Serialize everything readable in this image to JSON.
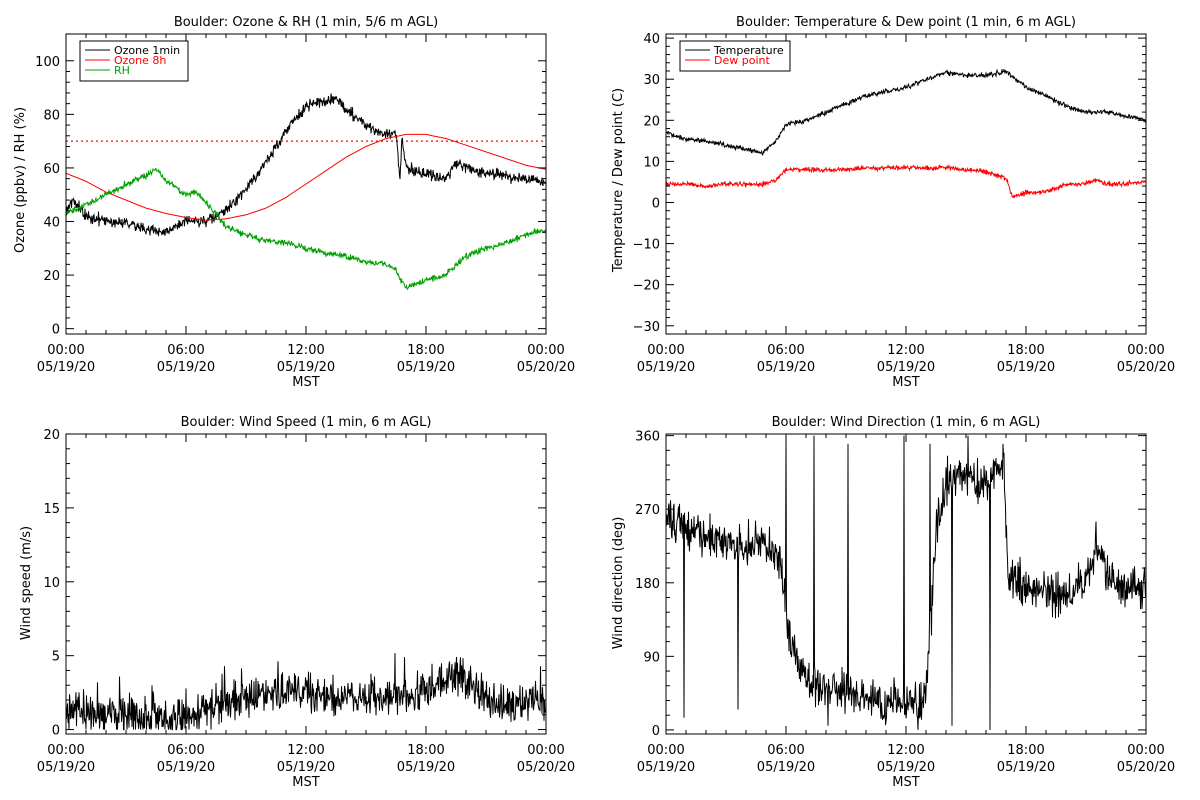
{
  "chart_data": [
    {
      "type": "line",
      "title": "Boulder: Ozone & RH (1 min, 5/6 m AGL)",
      "ylabel": "Ozone (ppbv) / RH (%)",
      "xlabel": "",
      "xlim": [
        0,
        24
      ],
      "ylim": [
        -2,
        110
      ],
      "y_ticks": [
        "0",
        "20",
        "40",
        "60",
        "80",
        "100"
      ],
      "x_tick_times": [
        "00:00",
        "06:00",
        "12:00",
        "18:00",
        "00:00"
      ],
      "x_tick_dates": [
        "05/19/20",
        "05/19/20",
        "05/19/20",
        "05/19/20",
        "05/20/20"
      ],
      "legend": "top-left",
      "reference_line": {
        "y": 70,
        "color": "#ff0000",
        "style": "dotted"
      },
      "series": [
        {
          "name": "Ozone 1min",
          "color": "#000000",
          "noise": 1.5,
          "x": [
            0,
            0.3,
            1,
            2,
            3,
            4,
            5,
            5.5,
            6,
            7,
            8,
            9,
            10,
            11,
            12,
            13,
            13.5,
            14,
            15,
            16,
            16.5,
            16.7,
            16.8,
            17,
            18,
            19,
            19.5,
            20,
            21,
            22,
            23,
            24
          ],
          "values": [
            44,
            48,
            42,
            40,
            40,
            37,
            36,
            38,
            40,
            40,
            44,
            52,
            62,
            74,
            83,
            85,
            86,
            82,
            76,
            72,
            74,
            55,
            72,
            60,
            58,
            56,
            62,
            60,
            58,
            57,
            56,
            54
          ]
        },
        {
          "name": "Ozone 8h",
          "color": "#ff0000",
          "noise": 0,
          "x": [
            0,
            1,
            2,
            3,
            4,
            5,
            6,
            7,
            8,
            9,
            10,
            11,
            12,
            13,
            14,
            15,
            16,
            17,
            18,
            19,
            20,
            21,
            22,
            23,
            24
          ],
          "values": [
            58,
            55,
            51,
            48,
            45,
            43,
            41.5,
            40.5,
            41,
            42.5,
            45,
            49,
            54,
            59,
            64,
            68,
            71,
            72.5,
            72.5,
            71,
            68.5,
            66,
            63.5,
            61,
            59.5
          ]
        },
        {
          "name": "RH",
          "color": "#00a000",
          "noise": 0.8,
          "x": [
            0,
            1,
            2,
            3,
            4,
            4.5,
            5,
            5.3,
            6,
            6.5,
            7,
            7.5,
            8,
            9,
            10,
            11,
            12,
            13,
            14,
            15,
            16,
            16.5,
            17,
            18,
            19,
            19.5,
            20,
            21,
            22,
            23,
            24
          ],
          "values": [
            43,
            46,
            50,
            54,
            57,
            60,
            55,
            54,
            50,
            51,
            47,
            43,
            38,
            35,
            33,
            32,
            30,
            28,
            27,
            25,
            24,
            22,
            15,
            18,
            20,
            24,
            27,
            30,
            32,
            35,
            37
          ]
        }
      ]
    },
    {
      "type": "line",
      "title": "Boulder: Temperature & Dew point (1 min, 6 m AGL)",
      "ylabel": "Temperature / Dew point (C)",
      "xlabel": "",
      "xlim": [
        0,
        24
      ],
      "ylim": [
        -32,
        41
      ],
      "y_ticks": [
        "−30",
        "−20",
        "−10",
        "0",
        "10",
        "20",
        "30",
        "40"
      ],
      "y_tick_values": [
        -30,
        -20,
        -10,
        0,
        10,
        20,
        30,
        40
      ],
      "x_tick_times": [
        "00:00",
        "06:00",
        "12:00",
        "18:00",
        "00:00"
      ],
      "x_tick_dates": [
        "05/19/20",
        "05/19/20",
        "05/19/20",
        "05/19/20",
        "05/20/20"
      ],
      "legend": "top-left",
      "series": [
        {
          "name": "Temperature",
          "color": "#000000",
          "noise": 0.4,
          "x": [
            0,
            1,
            2,
            3,
            4,
            4.8,
            5.5,
            6,
            7,
            8,
            9,
            10,
            11,
            12,
            13,
            14,
            15,
            16,
            17,
            17.5,
            18,
            19,
            20,
            21,
            22,
            23,
            24
          ],
          "values": [
            17,
            15.5,
            15,
            14,
            13,
            12,
            15,
            19,
            20,
            22,
            24,
            26,
            27,
            28,
            30,
            31.5,
            31,
            31,
            32,
            30,
            28,
            26,
            23.5,
            22,
            22,
            21,
            20
          ]
        },
        {
          "name": "Dew point",
          "color": "#ff0000",
          "noise": 0.4,
          "x": [
            0,
            1,
            2,
            3,
            4,
            5,
            5.5,
            6,
            7,
            8,
            9,
            10,
            11,
            12,
            13,
            14,
            15,
            16,
            17,
            17.3,
            17.8,
            18,
            19,
            20,
            21,
            21.5,
            22,
            23,
            24
          ],
          "values": [
            4.5,
            4.5,
            4,
            4.5,
            4.5,
            4.5,
            5.5,
            8,
            8,
            8,
            8,
            8.5,
            8.5,
            8.5,
            8.5,
            8.5,
            8,
            7.5,
            6,
            1.5,
            2,
            2.5,
            2.5,
            4.5,
            4.5,
            5.5,
            4.5,
            4.5,
            5
          ]
        }
      ]
    },
    {
      "type": "line",
      "title": "Boulder: Wind Speed (1 min, 6 m AGL)",
      "ylabel": "Wind speed (m/s)",
      "xlabel": "MST",
      "xlim": [
        0,
        24
      ],
      "ylim": [
        -0.3,
        20
      ],
      "y_ticks": [
        "0",
        "5",
        "10",
        "15",
        "20"
      ],
      "y_tick_values": [
        0,
        5,
        10,
        15,
        20
      ],
      "x_tick_times": [
        "00:00",
        "06:00",
        "12:00",
        "18:00",
        "00:00"
      ],
      "x_tick_dates": [
        "05/19/20",
        "05/19/20",
        "05/19/20",
        "05/19/20",
        "05/20/20"
      ],
      "series": [
        {
          "color": "#000000",
          "noise": 0.9,
          "x": [
            0,
            2,
            4,
            5,
            6,
            7,
            8,
            9,
            10,
            11,
            12,
            13,
            14,
            15,
            16,
            17,
            18,
            19,
            19.5,
            20,
            21,
            22,
            23,
            24
          ],
          "values": [
            0.9,
            0.9,
            1,
            0.8,
            0.5,
            1.2,
            1.6,
            2,
            2.3,
            2.6,
            2.5,
            2.1,
            2.2,
            2.2,
            2.2,
            2.3,
            2.6,
            3.4,
            3.9,
            3.1,
            2,
            1.8,
            1.9,
            1.6
          ]
        }
      ]
    },
    {
      "type": "line",
      "title": "Boulder: Wind Direction (1 min, 6 m AGL)",
      "ylabel": "Wind direction (deg)",
      "xlabel": "MST",
      "xlim": [
        0,
        24
      ],
      "ylim": [
        -5,
        362
      ],
      "y_ticks": [
        "0",
        "90",
        "180",
        "270",
        "360"
      ],
      "y_tick_values": [
        0,
        90,
        180,
        270,
        360
      ],
      "x_tick_times": [
        "00:00",
        "06:00",
        "12:00",
        "18:00",
        "00:00"
      ],
      "x_tick_dates": [
        "05/19/20",
        "05/19/20",
        "05/19/20",
        "05/19/20",
        "05/20/20"
      ],
      "series": [
        {
          "color": "#000000",
          "noise": 18,
          "x": [
            0,
            1,
            2,
            3,
            4,
            5,
            5.8,
            6.2,
            7,
            8,
            9,
            10,
            11,
            12,
            13,
            13.5,
            14,
            15,
            16,
            16.9,
            17.1,
            18,
            19,
            20,
            21,
            21.5,
            22,
            23,
            24
          ],
          "values": [
            260,
            245,
            240,
            230,
            225,
            230,
            200,
            110,
            60,
            55,
            45,
            40,
            35,
            30,
            40,
            240,
            300,
            310,
            300,
            320,
            180,
            180,
            170,
            165,
            180,
            230,
            190,
            170,
            175
          ],
          "spikes": [
            [
              0.9,
              15
            ],
            [
              3.6,
              25
            ],
            [
              6.0,
              360
            ],
            [
              7.4,
              360
            ],
            [
              8.1,
              5
            ],
            [
              9.1,
              350
            ],
            [
              11.9,
              360
            ],
            [
              12.6,
              0
            ],
            [
              13.2,
              350
            ],
            [
              14.3,
              5
            ],
            [
              15.1,
              360
            ],
            [
              16.2,
              0
            ],
            [
              16.8,
              330
            ]
          ]
        }
      ]
    }
  ]
}
